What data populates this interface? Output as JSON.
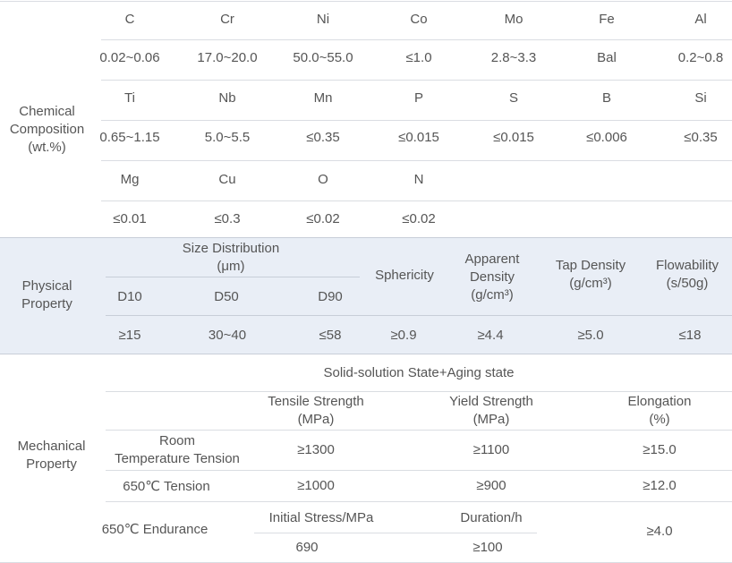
{
  "chemical": {
    "label": "Chemical\nComposition\n(wt.%)",
    "rows": [
      {
        "elements": [
          "C",
          "Cr",
          "Ni",
          "Co",
          "Mo",
          "Fe",
          "Al"
        ],
        "values": [
          "0.02~0.06",
          "17.0~20.0",
          "50.0~55.0",
          "≤1.0",
          "2.8~3.3",
          "Bal",
          "0.2~0.8"
        ]
      },
      {
        "elements": [
          "Ti",
          "Nb",
          "Mn",
          "P",
          "S",
          "B",
          "Si"
        ],
        "values": [
          "0.65~1.15",
          "5.0~5.5",
          "≤0.35",
          "≤0.015",
          "≤0.015",
          "≤0.006",
          "≤0.35"
        ]
      },
      {
        "elements": [
          "Mg",
          "Cu",
          "O",
          "N"
        ],
        "values": [
          "≤0.01",
          "≤0.3",
          "≤0.02",
          "≤0.02"
        ]
      }
    ]
  },
  "physical": {
    "label": "Physical\nProperty",
    "size_distribution": "Size Distribution\n(μm)",
    "d_headers": [
      "D10",
      "D50",
      "D90"
    ],
    "sphericity": "Sphericity",
    "apparent_density": "Apparent\nDensity\n(g/cm³)",
    "tap_density": "Tap Density\n(g/cm³)",
    "flowability": "Flowability\n(s/50g)",
    "values": [
      "≥15",
      "30~40",
      "≤58",
      "≥0.9",
      "≥4.4",
      "≥5.0",
      "≤18"
    ]
  },
  "mechanical": {
    "label": "Mechanical\nProperty",
    "state": "Solid-solution State+Aging state",
    "headers": [
      "Tensile Strength\n(MPa)",
      "Yield Strength\n(MPa)",
      "Elongation\n(%)"
    ],
    "room": {
      "label": "Room\nTemperature Tension",
      "values": [
        "≥1300",
        "≥1100",
        "≥15.0"
      ]
    },
    "t650": {
      "label": "650℃ Tension",
      "values": [
        "≥1000",
        "≥900",
        "≥12.0"
      ]
    },
    "endurance": {
      "label": "650℃ Endurance",
      "stress_label": "Initial Stress/MPa",
      "duration_label": "Duration/h",
      "stress": "690",
      "duration": "≥100",
      "elongation": "≥4.0"
    }
  },
  "colors": {
    "physical_bg": "#e9eef6",
    "line": "#dadde2",
    "text": "#555555"
  }
}
